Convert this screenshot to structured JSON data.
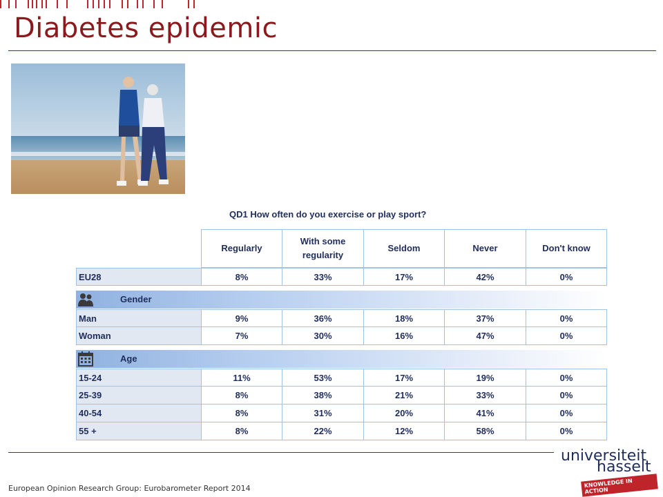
{
  "slide": {
    "title": "Diabetes epidemic",
    "source": "European Opinion Research Group: Eurobarometer Report 2014"
  },
  "photo": {
    "subject": "older couple jogging on beach"
  },
  "survey": {
    "question": "QD1 How often do you exercise or play sport?",
    "columns": [
      "Regularly",
      "With some regularity",
      "Seldom",
      "Never",
      "Don't know"
    ],
    "eu28": {
      "label": "EU28",
      "values": [
        "8%",
        "33%",
        "17%",
        "42%",
        "0%"
      ]
    },
    "gender": {
      "heading": "Gender",
      "rows": [
        {
          "label": "Man",
          "values": [
            "9%",
            "36%",
            "18%",
            "37%",
            "0%"
          ]
        },
        {
          "label": "Woman",
          "values": [
            "7%",
            "30%",
            "16%",
            "47%",
            "0%"
          ]
        }
      ]
    },
    "age": {
      "heading": "Age",
      "rows": [
        {
          "label": "15-24",
          "values": [
            "11%",
            "53%",
            "17%",
            "19%",
            "0%"
          ]
        },
        {
          "label": "25-39",
          "values": [
            "8%",
            "38%",
            "21%",
            "33%",
            "0%"
          ]
        },
        {
          "label": "40-54",
          "values": [
            "8%",
            "31%",
            "20%",
            "41%",
            "0%"
          ]
        },
        {
          "label": "55 +",
          "values": [
            "8%",
            "22%",
            "12%",
            "58%",
            "0%"
          ]
        }
      ]
    }
  },
  "logo": {
    "line1": "universiteit",
    "line2": "hasselt",
    "tagline": "KNOWLEDGE IN ACTION"
  },
  "colors": {
    "accent": "#8b1a1e",
    "table_text": "#1f2d5c",
    "table_border": "#9ec3e6",
    "logo_tag": "#c0242b"
  }
}
